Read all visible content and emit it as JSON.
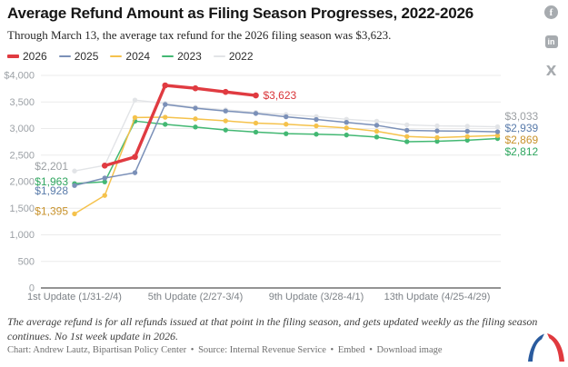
{
  "header": {
    "title": "Average Refund Amount as Filing Season Progresses, 2022-2026",
    "subtitle": "Through March 13, the average tax refund for the 2026 filing season was $3,623."
  },
  "social": {
    "facebook_glyph": "f",
    "linkedin_glyph": "in",
    "x_glyph": "X"
  },
  "chart_data": {
    "type": "line",
    "title": "Average Refund Amount as Filing Season Progresses, 2022-2026",
    "x_axis": {
      "label": "",
      "range": [
        1,
        15
      ],
      "ticks": [
        {
          "update": 1,
          "label": "1st Update (1/31-2/4)"
        },
        {
          "update": 5,
          "label": "5th Update (2/27-3/4)"
        },
        {
          "update": 9,
          "label": "9th Update (3/28-4/1)"
        },
        {
          "update": 13,
          "label": "13th Update (4/25-4/29)"
        }
      ]
    },
    "y_axis": {
      "label": "",
      "min": 0,
      "max": 4000,
      "tick_step": 500,
      "tick_labels": [
        "$4,000",
        "3,500",
        "3,000",
        "2,500",
        "2,000",
        "1,500",
        "1,000",
        "500",
        "0"
      ]
    },
    "grid": true,
    "legend_position": "top-left",
    "series": [
      {
        "name": "2026",
        "color": "#e03b41",
        "label_color": "#d93539",
        "line_width": 3.4,
        "x": [
          2,
          3,
          4,
          5,
          6,
          7
        ],
        "values": [
          2302,
          2466,
          3812,
          3757,
          3689,
          3623
        ],
        "end_label": "$3,623"
      },
      {
        "name": "2025",
        "color": "#7b90b8",
        "label_color": "#5a7cab",
        "line_width": 1.5,
        "x": [
          1,
          2,
          3,
          4,
          5,
          6,
          7,
          8,
          9,
          10,
          11,
          12,
          13,
          14,
          15
        ],
        "values": [
          1928,
          2069,
          2169,
          3453,
          3382,
          3330,
          3284,
          3221,
          3170,
          3116,
          3061,
          2966,
          2955,
          2950,
          2939
        ],
        "start_label": "$1,928",
        "end_label": "$2,939"
      },
      {
        "name": "2024",
        "color": "#f5c24c",
        "label_color": "#c8922b",
        "line_width": 1.5,
        "x": [
          1,
          2,
          3,
          4,
          5,
          6,
          7,
          8,
          9,
          10,
          11,
          12,
          13,
          14,
          15
        ],
        "values": [
          1395,
          1741,
          3207,
          3213,
          3182,
          3145,
          3103,
          3081,
          3050,
          3011,
          2948,
          2850,
          2830,
          2850,
          2869
        ],
        "start_label": "$1,395",
        "end_label": "$2,869"
      },
      {
        "name": "2023",
        "color": "#43b873",
        "label_color": "#2fa65f",
        "line_width": 1.5,
        "x": [
          1,
          2,
          3,
          4,
          5,
          6,
          7,
          8,
          9,
          10,
          11,
          12,
          13,
          14,
          15
        ],
        "values": [
          1963,
          1997,
          3140,
          3079,
          3028,
          2972,
          2933,
          2903,
          2893,
          2878,
          2840,
          2753,
          2760,
          2780,
          2812
        ],
        "start_label": "$1,963",
        "end_label": "$2,812"
      },
      {
        "name": "2022",
        "color": "#e2e4e7",
        "label_color": "#9b9fa3",
        "line_width": 1.4,
        "x": [
          1,
          2,
          3,
          4,
          5,
          6,
          7,
          8,
          9,
          10,
          11,
          12,
          13,
          14,
          15
        ],
        "values": [
          2201,
          2306,
          3536,
          3473,
          3401,
          3352,
          3305,
          3263,
          3226,
          3175,
          3138,
          3069,
          3050,
          3044,
          3033
        ],
        "start_label": "$2,201",
        "end_label": "$3,033"
      }
    ]
  },
  "footer": {
    "note": "The average refund is for all refunds issued at that point in the filing season, and gets updated weekly as the filing season continues. No 1st week update in 2026.",
    "credit_prefix": "Chart: Andrew Lautz, Bipartisan Policy Center",
    "source": "Source: Internal Revenue Service",
    "embed_label": "Embed",
    "download_label": "Download image",
    "separator": "•"
  }
}
